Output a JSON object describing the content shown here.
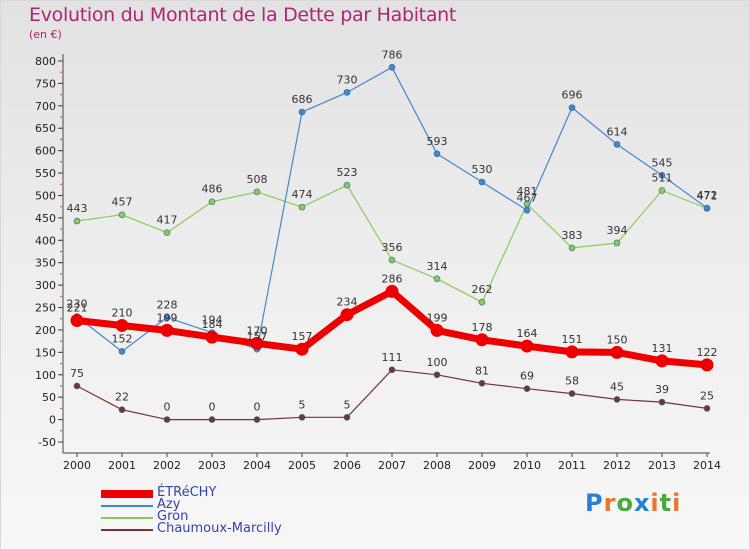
{
  "header": {
    "title": "Evolution du Montant de la Dette par Habitant",
    "subtitle": "(en €)"
  },
  "logo": {
    "text": "Proxiti",
    "colors": [
      "#2a7fd4",
      "#e8762c",
      "#4aaa3c",
      "#2a7fd4",
      "#e8762c",
      "#4aaa3c",
      "#e8762c"
    ]
  },
  "chart_data": {
    "type": "line",
    "title": "Evolution du Montant de la Dette par Habitant",
    "subtitle": "(en €)",
    "x": [
      "2000",
      "2001",
      "2002",
      "2003",
      "2004",
      "2005",
      "2006",
      "2007",
      "2008",
      "2009",
      "2010",
      "2011",
      "2012",
      "2013",
      "2014"
    ],
    "yticks": [
      -50,
      0,
      50,
      100,
      150,
      200,
      250,
      300,
      350,
      400,
      450,
      500,
      550,
      600,
      650,
      700,
      750,
      800
    ],
    "ylim": [
      -50,
      800
    ],
    "grid": false,
    "legend_position": "bottom-left",
    "series": [
      {
        "name": "ÉTRéCHY",
        "color": "#ee0000",
        "values": [
          221,
          210,
          199,
          184,
          170,
          157,
          234,
          286,
          199,
          178,
          164,
          151,
          150,
          131,
          122
        ],
        "labels": [
          "221",
          "210",
          "199",
          "184",
          "170",
          "157",
          "234",
          "286",
          "199",
          "178",
          "164",
          "151",
          "150",
          "131",
          "122"
        ]
      },
      {
        "name": "Azy",
        "color": "#4488cc",
        "values": [
          230,
          152,
          228,
          194,
          157,
          686,
          730,
          786,
          593,
          530,
          467,
          696,
          614,
          545,
          472
        ],
        "labels": [
          "230",
          "152",
          "228",
          "194",
          "157",
          "686",
          "730",
          "786",
          "593",
          "530",
          "467",
          "696",
          "614",
          "545",
          "472"
        ]
      },
      {
        "name": "Gron",
        "color": "#88cc55",
        "values": [
          443,
          457,
          417,
          486,
          508,
          474,
          523,
          356,
          314,
          262,
          481,
          383,
          394,
          511,
          471
        ],
        "labels": [
          "443",
          "457",
          "417",
          "486",
          "508",
          "474",
          "523",
          "356",
          "314",
          "262",
          "481",
          "383",
          "394",
          "511",
          "471"
        ]
      },
      {
        "name": "Chaumoux-Marcilly",
        "color": "#773333",
        "values": [
          75,
          22,
          0,
          0,
          0,
          5,
          5,
          111,
          100,
          81,
          69,
          58,
          45,
          39,
          25
        ],
        "labels": [
          "75",
          "22",
          "0",
          "0",
          "0",
          "5",
          "5",
          "111",
          "100",
          "81",
          "69",
          "58",
          "45",
          "39",
          "25"
        ]
      }
    ]
  }
}
